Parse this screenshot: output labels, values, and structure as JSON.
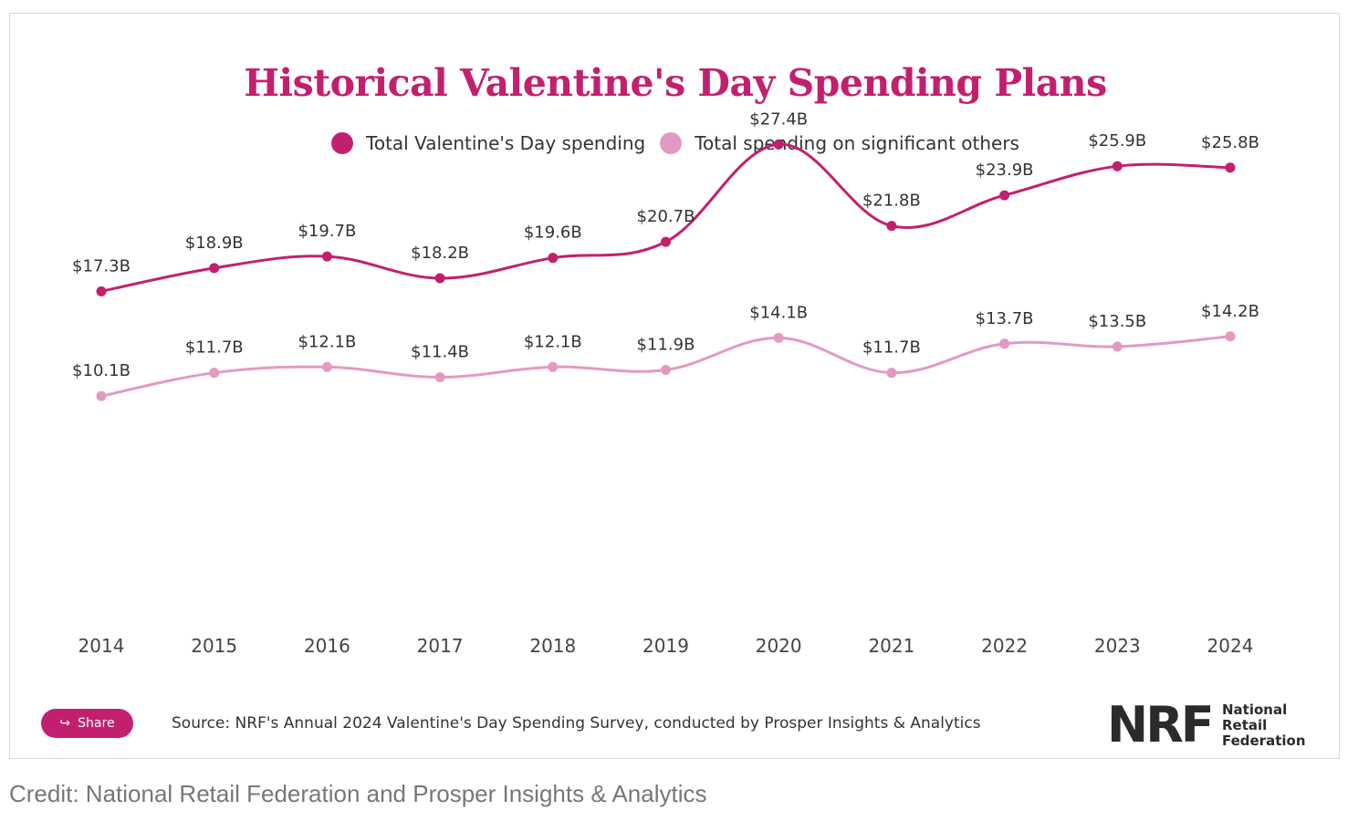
{
  "chart_data": {
    "type": "line",
    "title": "Historical Valentine's Day Spending Plans",
    "categories": [
      "2014",
      "2015",
      "2016",
      "2017",
      "2018",
      "2019",
      "2020",
      "2021",
      "2022",
      "2023",
      "2024"
    ],
    "series": [
      {
        "name": "Total Valentine's Day spending",
        "color": "#c2206f",
        "values": [
          17.3,
          18.9,
          19.7,
          18.2,
          19.6,
          20.7,
          27.4,
          21.8,
          23.9,
          25.9,
          25.8
        ],
        "labels": [
          "$17.3B",
          "$18.9B",
          "$19.7B",
          "$18.2B",
          "$19.6B",
          "$20.7B",
          "$27.4B",
          "$21.8B",
          "$23.9B",
          "$25.9B",
          "$25.8B"
        ]
      },
      {
        "name": "Total spending on significant others",
        "color": "#e39ac2",
        "values": [
          10.1,
          11.7,
          12.1,
          11.4,
          12.1,
          11.9,
          14.1,
          11.7,
          13.7,
          13.5,
          14.2
        ],
        "labels": [
          "$10.1B",
          "$11.7B",
          "$12.1B",
          "$11.4B",
          "$12.1B",
          "$11.9B",
          "$14.1B",
          "$11.7B",
          "$13.7B",
          "$13.5B",
          "$14.2B"
        ]
      }
    ],
    "grid": false,
    "legend_placement": "top-center"
  },
  "share_label": "Share",
  "source": "Source: NRF's Annual 2024 Valentine's Day Spending Survey, conducted by Prosper Insights & Analytics",
  "logo": {
    "letters": "NRF",
    "line1": "National",
    "line2": "Retail",
    "line3": "Federation"
  },
  "credit": "Credit: National Retail Federation and Prosper Insights & Analytics"
}
